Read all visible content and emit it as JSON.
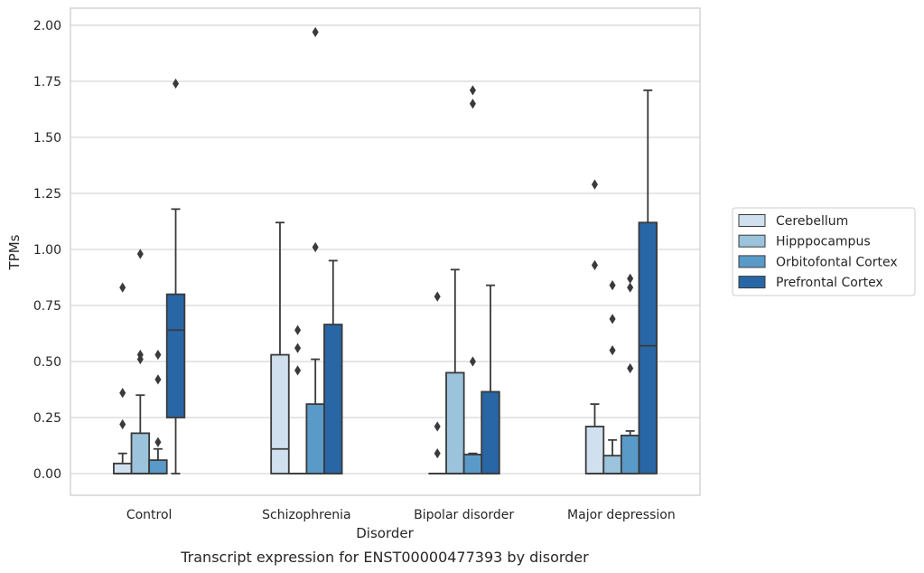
{
  "chart_data": {
    "type": "box",
    "caption": "Transcript expression for ENST00000477393 by disorder",
    "xlabel": "Disorder",
    "ylabel": "TPMs",
    "ylim": [
      -0.1,
      2.07
    ],
    "yticks": [
      "0.00",
      "0.25",
      "0.50",
      "0.75",
      "1.00",
      "1.25",
      "1.50",
      "1.75",
      "2.00"
    ],
    "grid": "horizontal",
    "legend_position": "right",
    "categories": [
      "Control",
      "Schizophrenia",
      "Bipolar disorder",
      "Major depression"
    ],
    "series": [
      {
        "name": "Cerebellum",
        "color": "#d1e0ef",
        "boxes": [
          {
            "q1": 0.0,
            "median": 0.0,
            "q3": 0.045,
            "whisker_low": 0.0,
            "whisker_high": 0.09,
            "outliers": [
              0.22,
              0.36,
              0.83
            ]
          },
          {
            "q1": 0.0,
            "median": 0.11,
            "q3": 0.53,
            "whisker_low": 0.0,
            "whisker_high": 1.12,
            "outliers": []
          },
          {
            "q1": 0.0,
            "median": 0.0,
            "q3": 0.0,
            "whisker_low": 0.0,
            "whisker_high": 0.0,
            "outliers": [
              0.09,
              0.21,
              0.79
            ]
          },
          {
            "q1": 0.0,
            "median": 0.0,
            "q3": 0.21,
            "whisker_low": 0.0,
            "whisker_high": 0.31,
            "outliers": [
              0.93,
              1.29
            ]
          }
        ]
      },
      {
        "name": "Hipppocampus",
        "color": "#9bc3dc",
        "boxes": [
          {
            "q1": 0.0,
            "median": 0.0,
            "q3": 0.18,
            "whisker_low": 0.0,
            "whisker_high": 0.35,
            "outliers": [
              0.51,
              0.53,
              0.98
            ]
          },
          {
            "q1": 0.0,
            "median": 0.0,
            "q3": 0.0,
            "whisker_low": 0.0,
            "whisker_high": 0.0,
            "outliers": [
              0.46,
              0.56,
              0.64
            ]
          },
          {
            "q1": 0.0,
            "median": 0.0,
            "q3": 0.45,
            "whisker_low": 0.0,
            "whisker_high": 0.91,
            "outliers": []
          },
          {
            "q1": 0.0,
            "median": 0.0,
            "q3": 0.08,
            "whisker_low": 0.0,
            "whisker_high": 0.15,
            "outliers": [
              0.55,
              0.69,
              0.84
            ]
          }
        ]
      },
      {
        "name": "Orbitofontal Cortex",
        "color": "#5a9ac8",
        "boxes": [
          {
            "q1": 0.0,
            "median": 0.0,
            "q3": 0.06,
            "whisker_low": 0.0,
            "whisker_high": 0.11,
            "outliers": [
              0.14,
              0.42,
              0.53
            ]
          },
          {
            "q1": 0.0,
            "median": 0.0,
            "q3": 0.31,
            "whisker_low": 0.0,
            "whisker_high": 0.51,
            "outliers": [
              1.01,
              1.97
            ]
          },
          {
            "q1": 0.0,
            "median": 0.0,
            "q3": 0.085,
            "whisker_low": 0.0,
            "whisker_high": 0.09,
            "outliers": [
              0.5,
              1.65,
              1.71
            ]
          },
          {
            "q1": 0.0,
            "median": 0.0,
            "q3": 0.17,
            "whisker_low": 0.0,
            "whisker_high": 0.19,
            "outliers": [
              0.47,
              0.83,
              0.87
            ]
          }
        ]
      },
      {
        "name": "Prefrontal Cortex",
        "color": "#2866a6",
        "boxes": [
          {
            "q1": 0.25,
            "median": 0.64,
            "q3": 0.8,
            "whisker_low": 0.0,
            "whisker_high": 1.18,
            "outliers": [
              1.74
            ]
          },
          {
            "q1": 0.0,
            "median": 0.0,
            "q3": 0.665,
            "whisker_low": 0.0,
            "whisker_high": 0.95,
            "outliers": []
          },
          {
            "q1": 0.0,
            "median": 0.0,
            "q3": 0.365,
            "whisker_low": 0.0,
            "whisker_high": 0.84,
            "outliers": []
          },
          {
            "q1": 0.0,
            "median": 0.57,
            "q3": 1.12,
            "whisker_low": 0.0,
            "whisker_high": 1.71,
            "outliers": []
          }
        ]
      }
    ]
  }
}
